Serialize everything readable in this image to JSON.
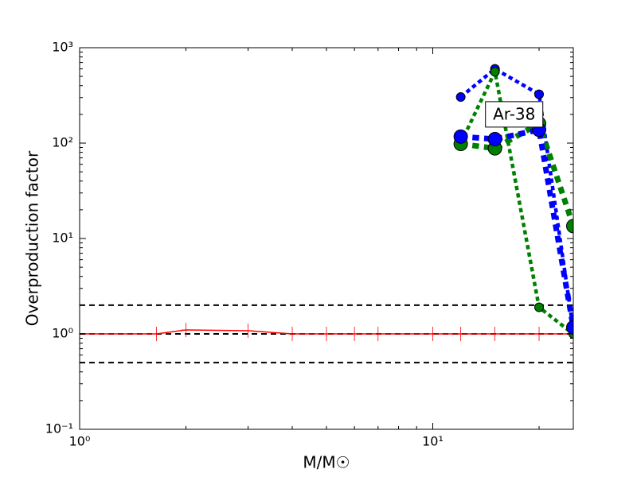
{
  "chart_data": {
    "type": "line",
    "xlabel": "M/M☉",
    "ylabel": "Overproduction factor",
    "xscale": "log",
    "yscale": "log",
    "xlim": [
      1,
      25
    ],
    "ylim": [
      0.1,
      1000
    ],
    "xticks": [
      {
        "value": 1,
        "label": "10⁰"
      },
      {
        "value": 10,
        "label": "10¹"
      }
    ],
    "yticks": [
      {
        "value": 0.1,
        "label": "10⁻¹"
      },
      {
        "value": 1,
        "label": "10⁰"
      },
      {
        "value": 10,
        "label": "10¹"
      },
      {
        "value": 100,
        "label": "10²"
      },
      {
        "value": 1000,
        "label": "10³"
      }
    ],
    "reference_lines": {
      "color": "#000000",
      "linestyle": "dashed",
      "values": [
        2,
        1,
        0.5
      ]
    },
    "annotation": {
      "text": "Ar-38",
      "x": 17,
      "y": 200
    },
    "series": [
      {
        "color": "#ff0000",
        "linestyle": "solid",
        "marker": "plus",
        "x": [
          1,
          1.65,
          2,
          3,
          4,
          5,
          6,
          7,
          10,
          12,
          15,
          20,
          25
        ],
        "values": [
          1,
          1,
          1.1,
          1.08,
          1,
          1,
          1,
          1,
          1,
          1,
          1,
          1,
          1
        ]
      },
      {
        "color": "#0000ff",
        "linestyle": "dotted",
        "marker": "circle",
        "x": [
          12,
          15,
          20,
          25
        ],
        "values": [
          304,
          600,
          325,
          1.1
        ]
      },
      {
        "color": "#008000",
        "linestyle": "dotted",
        "marker": "circle",
        "x": [
          12,
          15,
          20,
          25
        ],
        "values": [
          100,
          560,
          1.9,
          1
        ]
      },
      {
        "color": "#008000",
        "linestyle": "dotted",
        "marker": "circle",
        "x": [
          12,
          15,
          20,
          25
        ],
        "values": [
          98,
          88,
          160,
          13.5
        ]
      },
      {
        "color": "#0000ff",
        "linestyle": "dotted",
        "marker": "circle",
        "x": [
          12,
          15,
          20,
          25
        ],
        "values": [
          117,
          110,
          138,
          1.17
        ]
      }
    ]
  }
}
